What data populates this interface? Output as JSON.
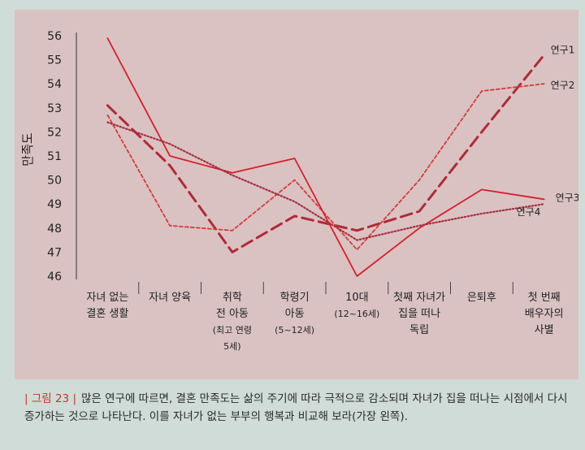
{
  "chart_data": {
    "type": "line",
    "ylabel": "만족도",
    "ylim": [
      46,
      56
    ],
    "yticks": [
      "46",
      "47",
      "48",
      "49",
      "50",
      "51",
      "52",
      "53",
      "54",
      "55",
      "56"
    ],
    "categories": [
      [
        "자녀 없는",
        "결혼 생활"
      ],
      [
        "자녀 양육"
      ],
      [
        "취학",
        "전 아동",
        "(최고 연령",
        "5세)"
      ],
      [
        "학령기",
        "아동",
        "(5~12세)"
      ],
      [
        "10대",
        "(12~16세)"
      ],
      [
        "첫째 자녀가",
        "집을 떠나",
        "독립"
      ],
      [
        "은퇴후"
      ],
      [
        "첫 번째",
        "배우자의",
        "사별"
      ]
    ],
    "series": [
      {
        "name": "연구1",
        "color": "#b02a3a",
        "style": "longdash",
        "values": [
          53.1,
          50.6,
          47.0,
          48.5,
          47.9,
          48.7,
          52.0,
          55.2
        ]
      },
      {
        "name": "연구2",
        "color": "#d63a3a",
        "style": "shortdash",
        "values": [
          52.7,
          48.1,
          47.9,
          50.0,
          47.1,
          50.0,
          53.7,
          54.0
        ]
      },
      {
        "name": "연구3",
        "color": "#d81e2a",
        "style": "solid",
        "values": [
          55.9,
          51.0,
          50.3,
          50.9,
          46.0,
          48.0,
          49.6,
          49.2
        ]
      },
      {
        "name": "연구4",
        "color": "#a83040",
        "style": "dotted",
        "values": [
          52.4,
          51.5,
          50.2,
          49.1,
          47.5,
          48.1,
          48.6,
          49.0
        ]
      }
    ]
  },
  "caption": {
    "tag": "| 그림 23 |",
    "text": "많은 연구에 따르면, 결혼 만족도는 삶의 주기에 따라 극적으로 감소되며 자녀가 집을 떠나는 시점에서 다시 증가하는 것으로 나타난다. 이를 자녀가 없는 부부의 행복과 비교해 보라(가장 왼쪽)."
  }
}
